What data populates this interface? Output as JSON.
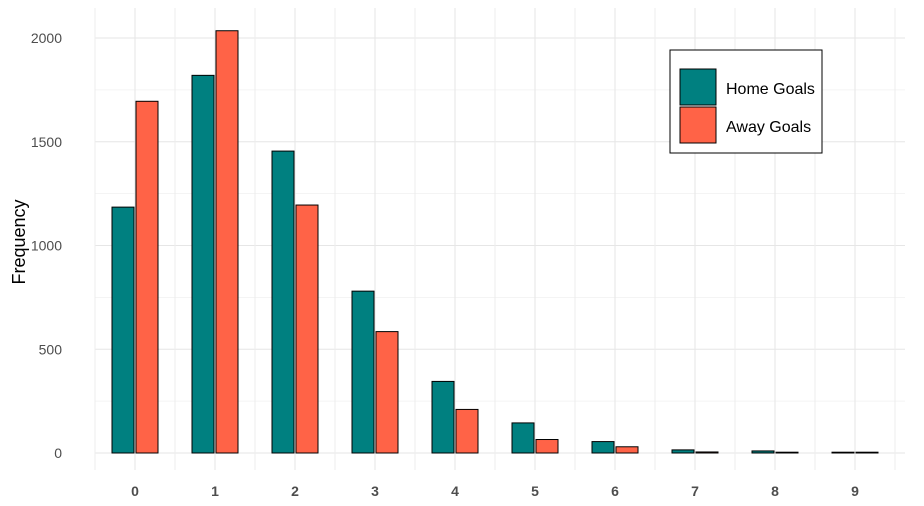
{
  "chart_data": {
    "type": "bar",
    "title": "",
    "xlabel": "",
    "ylabel": "Frequency",
    "categories": [
      "0",
      "1",
      "2",
      "3",
      "4",
      "5",
      "6",
      "7",
      "8",
      "9"
    ],
    "series": [
      {
        "name": "Home Goals",
        "color": "#008080",
        "values": [
          1185,
          1820,
          1455,
          780,
          345,
          145,
          55,
          15,
          10,
          2
        ]
      },
      {
        "name": "Away Goals",
        "color": "#FF6347",
        "values": [
          1695,
          2035,
          1195,
          585,
          210,
          65,
          30,
          5,
          2,
          2
        ]
      }
    ],
    "yticks": [
      "0",
      "500",
      "1000",
      "1500",
      "2000"
    ],
    "ylim": [
      0,
      2100
    ],
    "grid": true,
    "legend_position": "top-right"
  }
}
